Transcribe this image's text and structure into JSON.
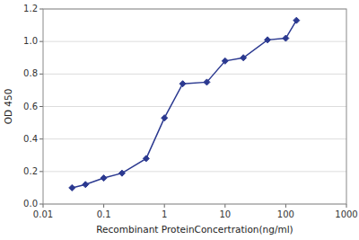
{
  "chart_data": {
    "type": "line",
    "xlabel": "Recombinant ProteinConcertration(ng/ml)",
    "ylabel": "OD 450",
    "x": [
      0.03,
      0.05,
      0.1,
      0.2,
      0.5,
      1.0,
      2.0,
      5.0,
      10.0,
      20.0,
      50.0,
      100.0,
      150.0
    ],
    "values": [
      0.1,
      0.12,
      0.16,
      0.19,
      0.28,
      0.53,
      0.74,
      0.75,
      0.88,
      0.9,
      1.01,
      1.02,
      1.13
    ],
    "color": "#2b3990",
    "marker": "diamond",
    "line_style": "solid",
    "log": "x",
    "grid": true,
    "xlim": [
      0.01,
      1000
    ],
    "ylim": [
      0,
      1.2
    ],
    "xticks": [
      0.01,
      0.1,
      1,
      10,
      100,
      1000
    ],
    "yticks": [
      {
        "value": 0,
        "label": "0.0"
      },
      0.2,
      0.4,
      0.6,
      0.8,
      {
        "value": 1.0,
        "label": "1.0"
      },
      1.2
    ]
  }
}
